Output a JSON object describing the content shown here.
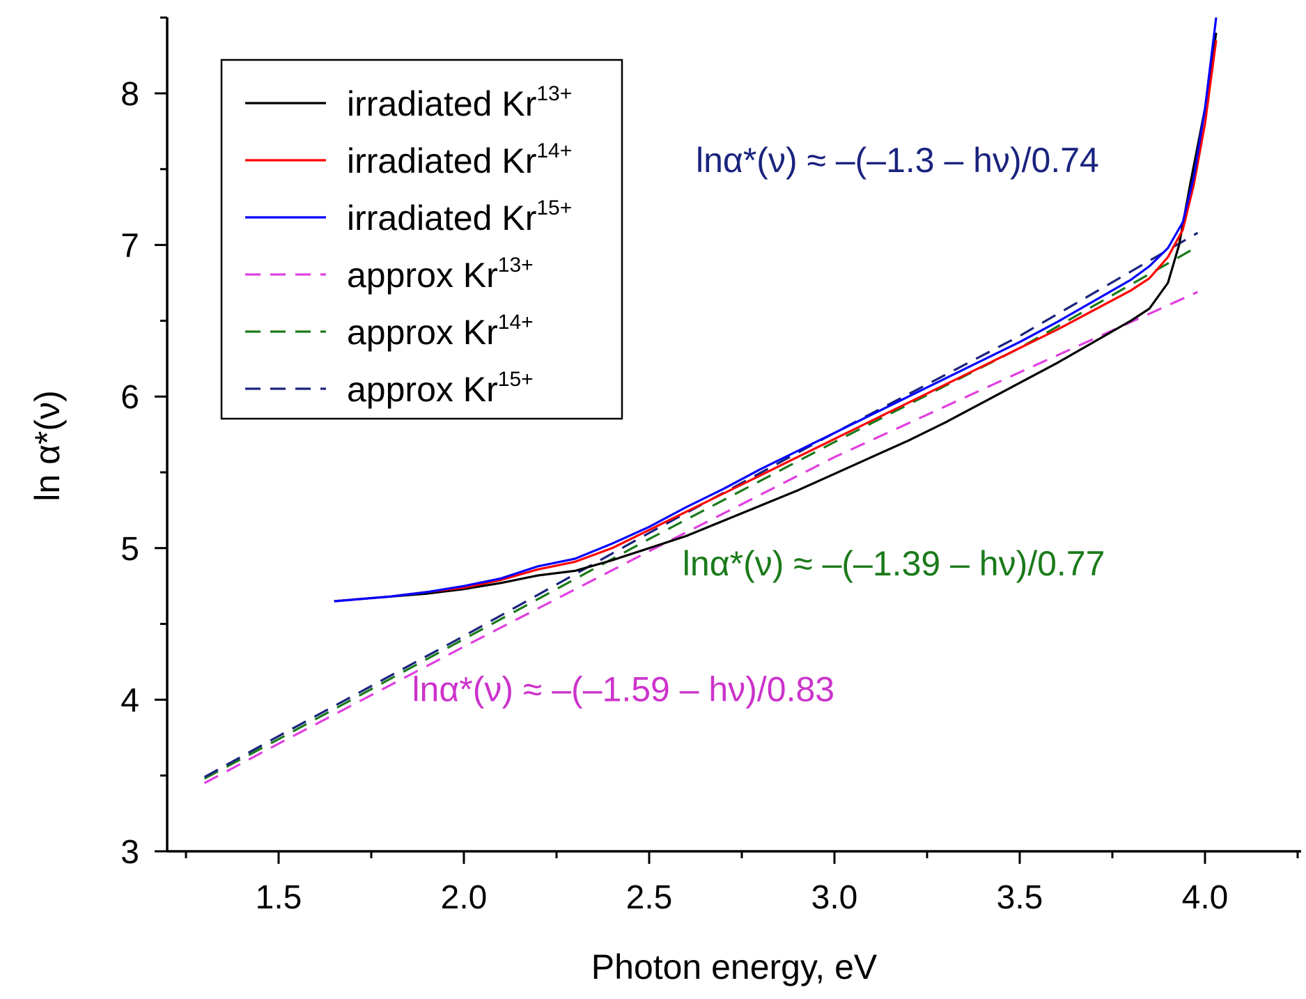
{
  "chart_data": {
    "type": "line",
    "xlabel": "Photon energy, eV",
    "ylabel": "ln α*(ν)",
    "xlim": [
      1.25,
      4.25
    ],
    "ylim": [
      3,
      8.5
    ],
    "x_ticks": [
      "1.5",
      "2.0",
      "2.5",
      "3.0",
      "3.5",
      "4.0"
    ],
    "y_ticks": [
      "3",
      "4",
      "5",
      "6",
      "7",
      "8"
    ],
    "legend_position": "top-left",
    "series": [
      {
        "name": "irradiated Kr13+",
        "legend_label": "irradiated Kr",
        "superscript": "13+",
        "color": "#000000",
        "dash": "solid",
        "x": [
          1.65,
          1.8,
          1.9,
          2.0,
          2.1,
          2.2,
          2.3,
          2.4,
          2.5,
          2.6,
          2.7,
          2.8,
          2.9,
          3.0,
          3.1,
          3.2,
          3.3,
          3.4,
          3.5,
          3.6,
          3.7,
          3.8,
          3.85,
          3.9,
          3.93,
          3.96,
          4.0,
          4.03
        ],
        "y": [
          4.65,
          4.68,
          4.7,
          4.73,
          4.77,
          4.82,
          4.85,
          4.92,
          5.0,
          5.08,
          5.18,
          5.28,
          5.38,
          5.49,
          5.6,
          5.71,
          5.83,
          5.96,
          6.09,
          6.22,
          6.36,
          6.5,
          6.58,
          6.75,
          7.0,
          7.4,
          7.9,
          8.4
        ]
      },
      {
        "name": "irradiated Kr14+",
        "legend_label": "irradiated Kr",
        "superscript": "14+",
        "color": "#ff0000",
        "dash": "solid",
        "x": [
          1.65,
          1.8,
          1.9,
          2.0,
          2.1,
          2.2,
          2.3,
          2.4,
          2.5,
          2.6,
          2.7,
          2.8,
          2.9,
          3.0,
          3.1,
          3.2,
          3.3,
          3.4,
          3.5,
          3.6,
          3.7,
          3.8,
          3.85,
          3.9,
          3.94,
          3.97,
          4.0,
          4.03
        ],
        "y": [
          4.65,
          4.68,
          4.71,
          4.74,
          4.79,
          4.86,
          4.91,
          5.0,
          5.12,
          5.24,
          5.36,
          5.48,
          5.6,
          5.72,
          5.84,
          5.96,
          6.08,
          6.2,
          6.32,
          6.44,
          6.57,
          6.7,
          6.78,
          6.92,
          7.1,
          7.4,
          7.8,
          8.35
        ]
      },
      {
        "name": "irradiated Kr15+",
        "legend_label": "irradiated Kr",
        "superscript": "15+",
        "color": "#0000ff",
        "dash": "solid",
        "x": [
          1.65,
          1.8,
          1.9,
          2.0,
          2.1,
          2.2,
          2.3,
          2.4,
          2.5,
          2.6,
          2.7,
          2.8,
          2.9,
          3.0,
          3.1,
          3.2,
          3.3,
          3.4,
          3.5,
          3.6,
          3.7,
          3.8,
          3.85,
          3.9,
          3.94,
          3.97,
          4.0,
          4.03
        ],
        "y": [
          4.65,
          4.68,
          4.71,
          4.75,
          4.8,
          4.88,
          4.93,
          5.03,
          5.14,
          5.27,
          5.39,
          5.52,
          5.64,
          5.76,
          5.88,
          6.0,
          6.12,
          6.24,
          6.36,
          6.49,
          6.63,
          6.77,
          6.86,
          6.98,
          7.15,
          7.45,
          7.9,
          8.5
        ]
      },
      {
        "name": "approx Kr13+",
        "legend_label": "approx Kr",
        "superscript": "13+",
        "color": "#e040e0",
        "dash": "dashed",
        "x": [
          1.3,
          1.5,
          2.0,
          2.5,
          3.0,
          3.5,
          3.98
        ],
        "y": [
          3.45,
          3.71,
          4.35,
          4.98,
          5.6,
          6.16,
          6.69
        ]
      },
      {
        "name": "approx Kr14+",
        "legend_label": "approx Kr",
        "superscript": "14+",
        "color": "#1a7a1a",
        "dash": "dashed",
        "x": [
          1.3,
          1.5,
          2.0,
          2.5,
          3.0,
          3.5,
          3.98
        ],
        "y": [
          3.48,
          3.74,
          4.4,
          5.06,
          5.7,
          6.32,
          6.99
        ]
      },
      {
        "name": "approx Kr15+",
        "legend_label": "approx Kr",
        "superscript": "15+",
        "color": "#1a237e",
        "dash": "dashed",
        "x": [
          1.3,
          1.5,
          2.0,
          2.5,
          3.0,
          3.5,
          3.98
        ],
        "y": [
          3.49,
          3.76,
          4.42,
          5.1,
          5.76,
          6.4,
          7.08
        ]
      }
    ],
    "annotations": [
      {
        "text": "lnα*(ν) ≈ –(–1.3 – hν)/0.74",
        "color": "#1a237e",
        "x": 3.17,
        "y": 7.48
      },
      {
        "text": "lnα*(ν) ≈ –(–1.39 – hν)/0.77",
        "color": "#1a7a1a",
        "x": 3.16,
        "y": 4.82
      },
      {
        "text": "lnα*(ν) ≈ –(–1.59 – hν)/0.83",
        "color": "#cc33cc",
        "x": 2.43,
        "y": 3.99
      }
    ]
  }
}
